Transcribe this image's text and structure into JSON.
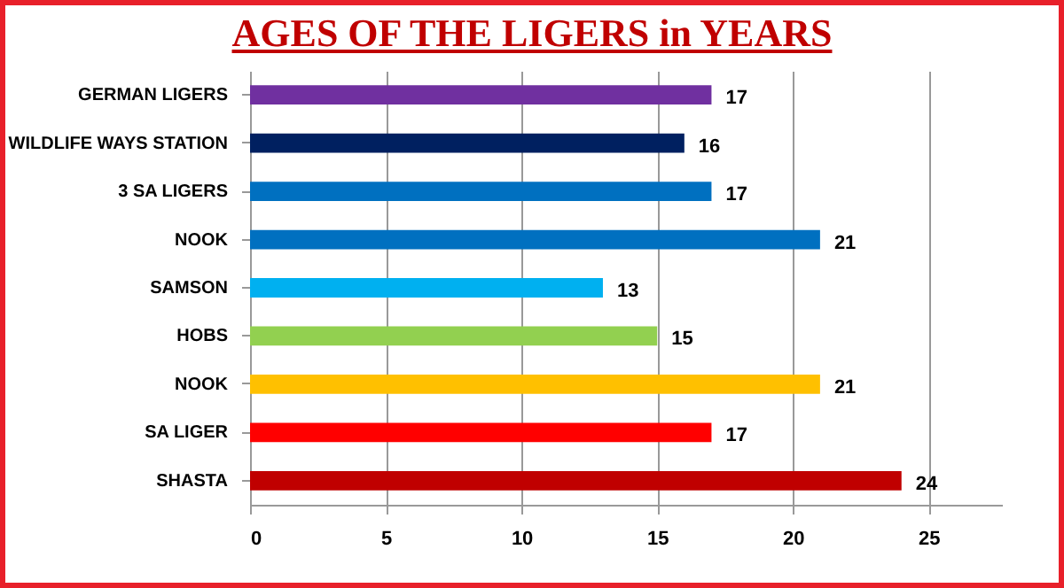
{
  "chart_data": {
    "type": "bar",
    "orientation": "horizontal",
    "title": "AGES OF THE LIGERS in YEARS",
    "categories": [
      "GERMAN  LIGERS",
      "WILDLIFE WAYS STATION",
      "3 SA LIGERS",
      "NOOK",
      "SAMSON",
      "HOBS",
      "NOOK",
      "SA LIGER",
      "SHASTA"
    ],
    "values": [
      17,
      16,
      17,
      21,
      13,
      15,
      21,
      17,
      24
    ],
    "colors": [
      "#7030a0",
      "#002060",
      "#0070c0",
      "#0070c0",
      "#00b0f0",
      "#92d050",
      "#ffc000",
      "#ff0000",
      "#c00000"
    ],
    "xlim": [
      0,
      27.7
    ],
    "xticks": [
      0,
      5,
      10,
      15,
      20,
      25
    ],
    "grid": "x",
    "data_labels": true
  }
}
